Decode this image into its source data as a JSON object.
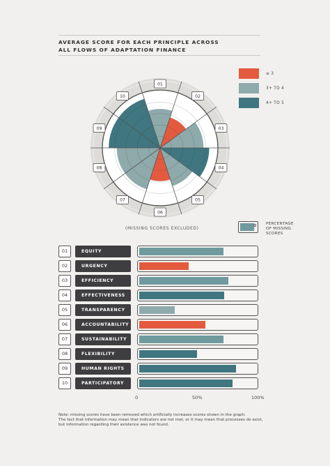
{
  "title_line1": "AVERAGE SCORE FOR EACH PRINCIPLE ACROSS",
  "title_line2": "ALL FLOWS OF ADAPTATION FINANCE",
  "legend": {
    "items": [
      {
        "label": "≤ 3",
        "color": "#e35a3f"
      },
      {
        "label": "3+ TO 4",
        "color": "#8eaaab"
      },
      {
        "label": "4+ TO 5",
        "color": "#3f7680"
      }
    ]
  },
  "missing_note": "(MISSING SCORES EXCLUDED)",
  "percentage_legend": {
    "line1": "PERCENTAGE",
    "line2": "OF MISSING",
    "line3": "SCORES"
  },
  "axis_labels": [
    "0",
    "50%",
    "100%"
  ],
  "note_lines": [
    "Note: missing scores have been removed which artificially increases scores shown in the graph.",
    "The fact that information may mean that indicators are not met, or it may mean that processes do exist,",
    "but information regarding their existence was not found."
  ],
  "chart_data": [
    {
      "type": "radar",
      "title": "AVERAGE SCORE FOR EACH PRINCIPLE ACROSS ALL FLOWS OF ADAPTATION FINANCE",
      "categories": [
        "01",
        "02",
        "03",
        "04",
        "05",
        "06",
        "07",
        "08",
        "09",
        "10"
      ],
      "values": [
        3.4,
        2.8,
        3.8,
        4.3,
        3.5,
        2.9,
        3.8,
        3.8,
        4.5,
        4.5
      ],
      "bands": [
        {
          "label": "≤ 3",
          "color": "#e35a3f"
        },
        {
          "label": "3+ TO 4",
          "color": "#8eaaab"
        },
        {
          "label": "4+ TO 5",
          "color": "#3f7680"
        }
      ],
      "ylim": [
        0,
        5
      ],
      "footnote": "(MISSING SCORES EXCLUDED)"
    },
    {
      "type": "bar",
      "orientation": "horizontal",
      "numbers": [
        "01",
        "02",
        "03",
        "04",
        "05",
        "06",
        "07",
        "08",
        "09",
        "10"
      ],
      "categories": [
        "EQUITY",
        "URGENCY",
        "EFFICIENCY",
        "EFFECTIVENESS",
        "TRANSPARENCY",
        "ACCOUNTABILITY",
        "SUSTAINABILITY",
        "FLEXIBILITY",
        "HUMAN RIGHTS",
        "PARTICIPATORY"
      ],
      "values": [
        71,
        42,
        75,
        72,
        30,
        56,
        71,
        49,
        82,
        79
      ],
      "colors": [
        "#6f9a9e",
        "#e35a3f",
        "#6f9a9e",
        "#3f7680",
        "#8eaaab",
        "#e35a3f",
        "#6f9a9e",
        "#3f7680",
        "#3f7680",
        "#3f7680"
      ],
      "legend": "PERCENTAGE OF MISSING SCORES",
      "xlim": [
        0,
        100
      ],
      "x_ticks": [
        "0",
        "50%",
        "100%"
      ]
    }
  ]
}
